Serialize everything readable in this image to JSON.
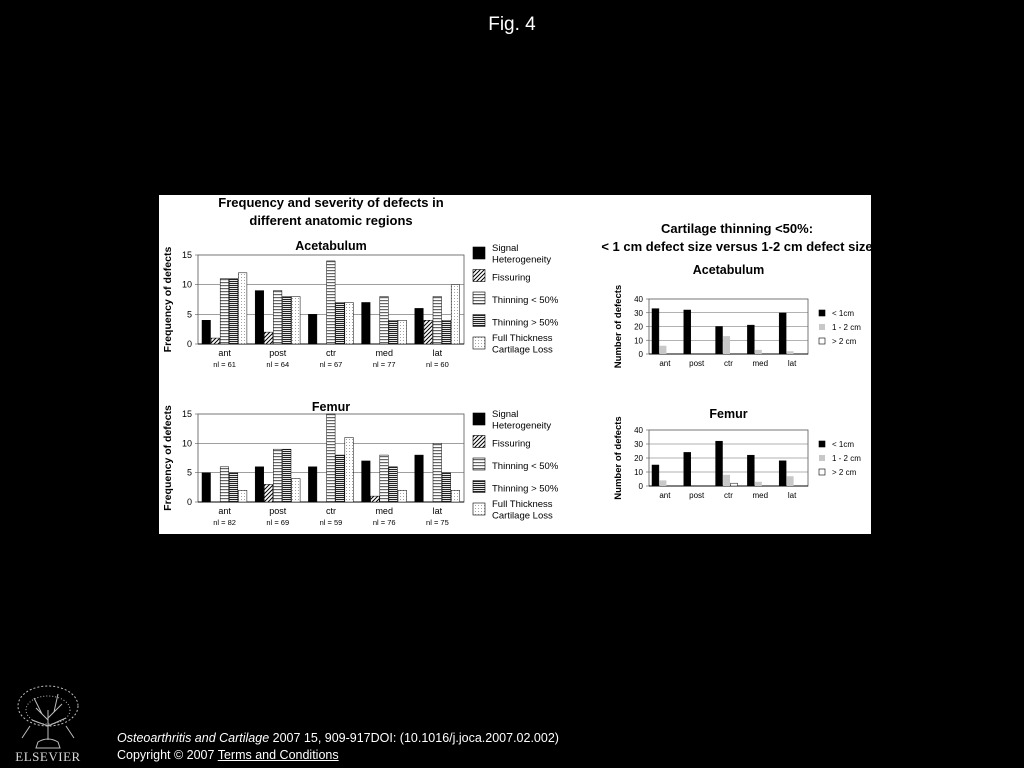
{
  "slide_title": "Fig. 4",
  "citation": {
    "journal": "Osteoarthritis and Cartilage",
    "details": " 2007 15, 909-917DOI: (10.1016/j.joca.2007.02.002)"
  },
  "copyright": {
    "text": "Copyright © 2007 ",
    "link": " Terms and Conditions"
  },
  "publisher_logo_text": "ELSEVIER",
  "colors": {
    "background": "#000000",
    "panel": "#ffffff",
    "black_bar": "#000000",
    "gray_bar": "#c8c8c8"
  },
  "left_panel_title": [
    "Frequency and severity of defects in",
    "different anatomic regions"
  ],
  "right_panel_title": [
    "Cartilage thinning <50%:",
    "< 1 cm defect size versus 1-2 cm defect size"
  ],
  "chart_data": [
    {
      "type": "bar",
      "title": "Acetabulum",
      "ylabel": "Frequency of defects",
      "ylim": [
        0,
        15
      ],
      "yticks": [
        0,
        5,
        10,
        15
      ],
      "grid": true,
      "legend_placement": "right",
      "categories": [
        "ant",
        "post",
        "ctr",
        "med",
        "lat"
      ],
      "category_notes": [
        "nl = 61",
        "nl = 64",
        "nl = 67",
        "nl = 77",
        "nl = 60"
      ],
      "series": [
        {
          "name": "Signal Heterogeneity",
          "pattern": "solid",
          "values": [
            4,
            9,
            5,
            7,
            6
          ]
        },
        {
          "name": "Fissuring",
          "pattern": "diagonal",
          "values": [
            1,
            2,
            0,
            0,
            4
          ]
        },
        {
          "name": "Thinning < 50%",
          "pattern": "hlines",
          "values": [
            11,
            9,
            14,
            8,
            8
          ]
        },
        {
          "name": "Thinning > 50%",
          "pattern": "dense",
          "values": [
            11,
            8,
            7,
            4,
            4
          ]
        },
        {
          "name": "Full Thickness Cartilage Loss",
          "pattern": "dots",
          "values": [
            12,
            8,
            7,
            4,
            10
          ]
        }
      ]
    },
    {
      "type": "bar",
      "title": "Femur",
      "ylabel": "Frequency of defects",
      "ylim": [
        0,
        15
      ],
      "yticks": [
        0,
        5,
        10,
        15
      ],
      "grid": true,
      "legend_placement": "right",
      "categories": [
        "ant",
        "post",
        "ctr",
        "med",
        "lat"
      ],
      "category_notes": [
        "nl = 82",
        "nl = 69",
        "nl = 59",
        "nl = 76",
        "nl = 75"
      ],
      "series": [
        {
          "name": "Signal Heterogeneity",
          "pattern": "solid",
          "values": [
            5,
            6,
            6,
            7,
            8
          ]
        },
        {
          "name": "Fissuring",
          "pattern": "diagonal",
          "values": [
            0,
            3,
            0,
            1,
            0
          ]
        },
        {
          "name": "Thinning < 50%",
          "pattern": "hlines",
          "values": [
            6,
            9,
            15,
            8,
            10
          ]
        },
        {
          "name": "Thinning > 50%",
          "pattern": "dense",
          "values": [
            5,
            9,
            8,
            6,
            5
          ]
        },
        {
          "name": "Full Thickness Cartilage Loss",
          "pattern": "dots",
          "values": [
            2,
            4,
            11,
            2,
            2
          ]
        }
      ]
    },
    {
      "type": "bar",
      "title": "Acetabulum",
      "ylabel": "Number of defects",
      "ylim": [
        0,
        40
      ],
      "yticks": [
        0,
        10,
        20,
        30,
        40
      ],
      "grid": true,
      "legend_placement": "right",
      "categories": [
        "ant",
        "post",
        "ctr",
        "med",
        "lat"
      ],
      "series": [
        {
          "name": "< 1cm",
          "pattern": "black",
          "values": [
            33,
            32,
            20,
            21,
            30
          ]
        },
        {
          "name": "1 - 2 cm",
          "pattern": "gray",
          "values": [
            6,
            0,
            13,
            3,
            2
          ]
        },
        {
          "name": "> 2 cm",
          "pattern": "white",
          "values": [
            0,
            0,
            0,
            0,
            0
          ]
        }
      ]
    },
    {
      "type": "bar",
      "title": "Femur",
      "ylabel": "Number of defects",
      "ylim": [
        0,
        40
      ],
      "yticks": [
        0,
        10,
        20,
        30,
        40
      ],
      "grid": true,
      "legend_placement": "right",
      "categories": [
        "ant",
        "post",
        "ctr",
        "med",
        "lat"
      ],
      "series": [
        {
          "name": "< 1cm",
          "pattern": "black",
          "values": [
            15,
            24,
            32,
            22,
            18
          ]
        },
        {
          "name": "1 - 2 cm",
          "pattern": "gray",
          "values": [
            4,
            0,
            8,
            3,
            7
          ]
        },
        {
          "name": "> 2 cm",
          "pattern": "white",
          "values": [
            0,
            0,
            2,
            0,
            0
          ]
        }
      ]
    }
  ]
}
